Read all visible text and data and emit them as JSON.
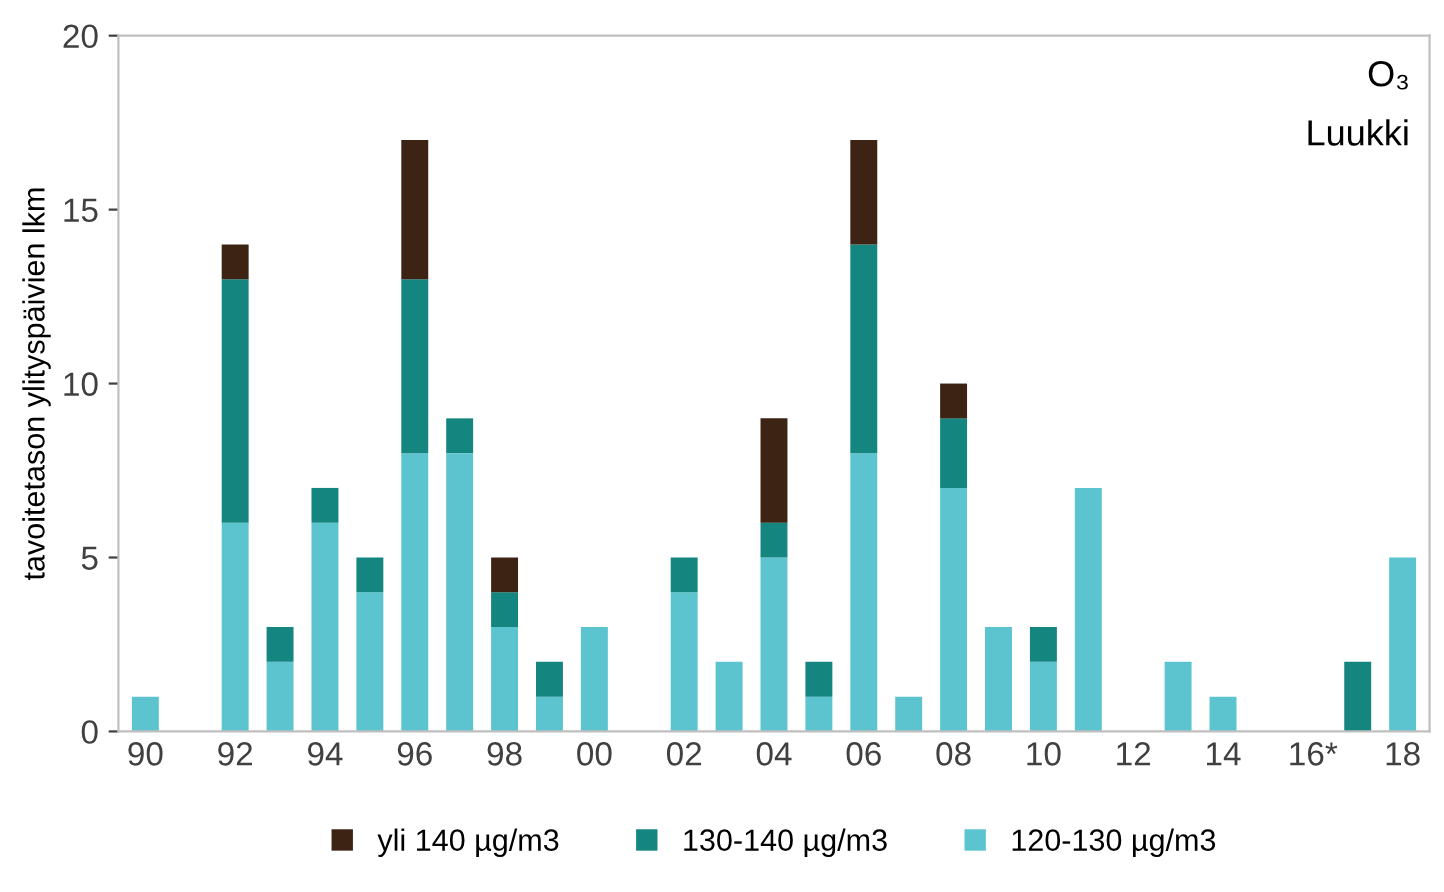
{
  "chart_data": {
    "type": "bar",
    "stacked": true,
    "ylabel": "tavoitetason ylityspäivien lkm",
    "categories": [
      "90",
      null,
      "92",
      null,
      "94",
      null,
      "96",
      null,
      "98",
      null,
      "00",
      null,
      "02",
      null,
      "04",
      null,
      "06",
      null,
      "08",
      null,
      "10",
      null,
      "12",
      null,
      "14",
      null,
      "16*",
      null,
      "18"
    ],
    "series": [
      {
        "name": "120-130 µg/m3",
        "color": "#5bc4cf",
        "values": [
          1,
          0,
          6,
          2,
          6,
          4,
          8,
          8,
          3,
          1,
          3,
          0,
          4,
          2,
          5,
          1,
          8,
          1,
          7,
          3,
          2,
          7,
          0,
          2,
          1,
          0,
          0,
          0,
          5
        ]
      },
      {
        "name": "130-140 µg/m3",
        "color": "#14857f",
        "values": [
          0,
          0,
          7,
          1,
          1,
          1,
          5,
          1,
          1,
          1,
          0,
          0,
          1,
          0,
          1,
          1,
          6,
          0,
          2,
          0,
          1,
          0,
          0,
          0,
          0,
          0,
          0,
          2,
          0
        ]
      },
      {
        "name": "yli 140 µg/m3",
        "color": "#3d2314",
        "values": [
          0,
          0,
          1,
          0,
          0,
          0,
          4,
          0,
          1,
          0,
          0,
          0,
          0,
          0,
          3,
          0,
          3,
          0,
          1,
          0,
          0,
          0,
          0,
          0,
          0,
          0,
          0,
          0,
          0
        ]
      }
    ],
    "ylim": [
      0,
      20
    ],
    "yticks": [
      0,
      5,
      10,
      15,
      20
    ],
    "grid": false,
    "legend": "bottom",
    "annotations": [
      "O₃",
      "Luukki"
    ]
  }
}
